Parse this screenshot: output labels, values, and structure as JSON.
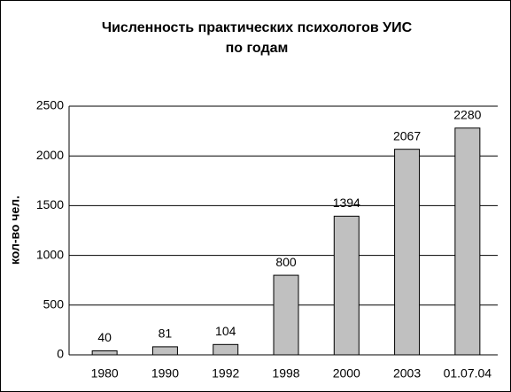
{
  "chart_data": {
    "type": "bar",
    "title": [
      "Численность практических психологов УИС",
      "по годам"
    ],
    "y_label": "кол-во чел.",
    "categories": [
      "1980",
      "1990",
      "1992",
      "1998",
      "2000",
      "2003",
      "01.07.04"
    ],
    "values": [
      40,
      81,
      104,
      800,
      1394,
      2067,
      2280
    ],
    "color": "#c0c0c0",
    "ylim": [
      0,
      2500
    ],
    "yticks": [
      0,
      500,
      1000,
      1500,
      2000,
      2500
    ],
    "grid": true
  }
}
